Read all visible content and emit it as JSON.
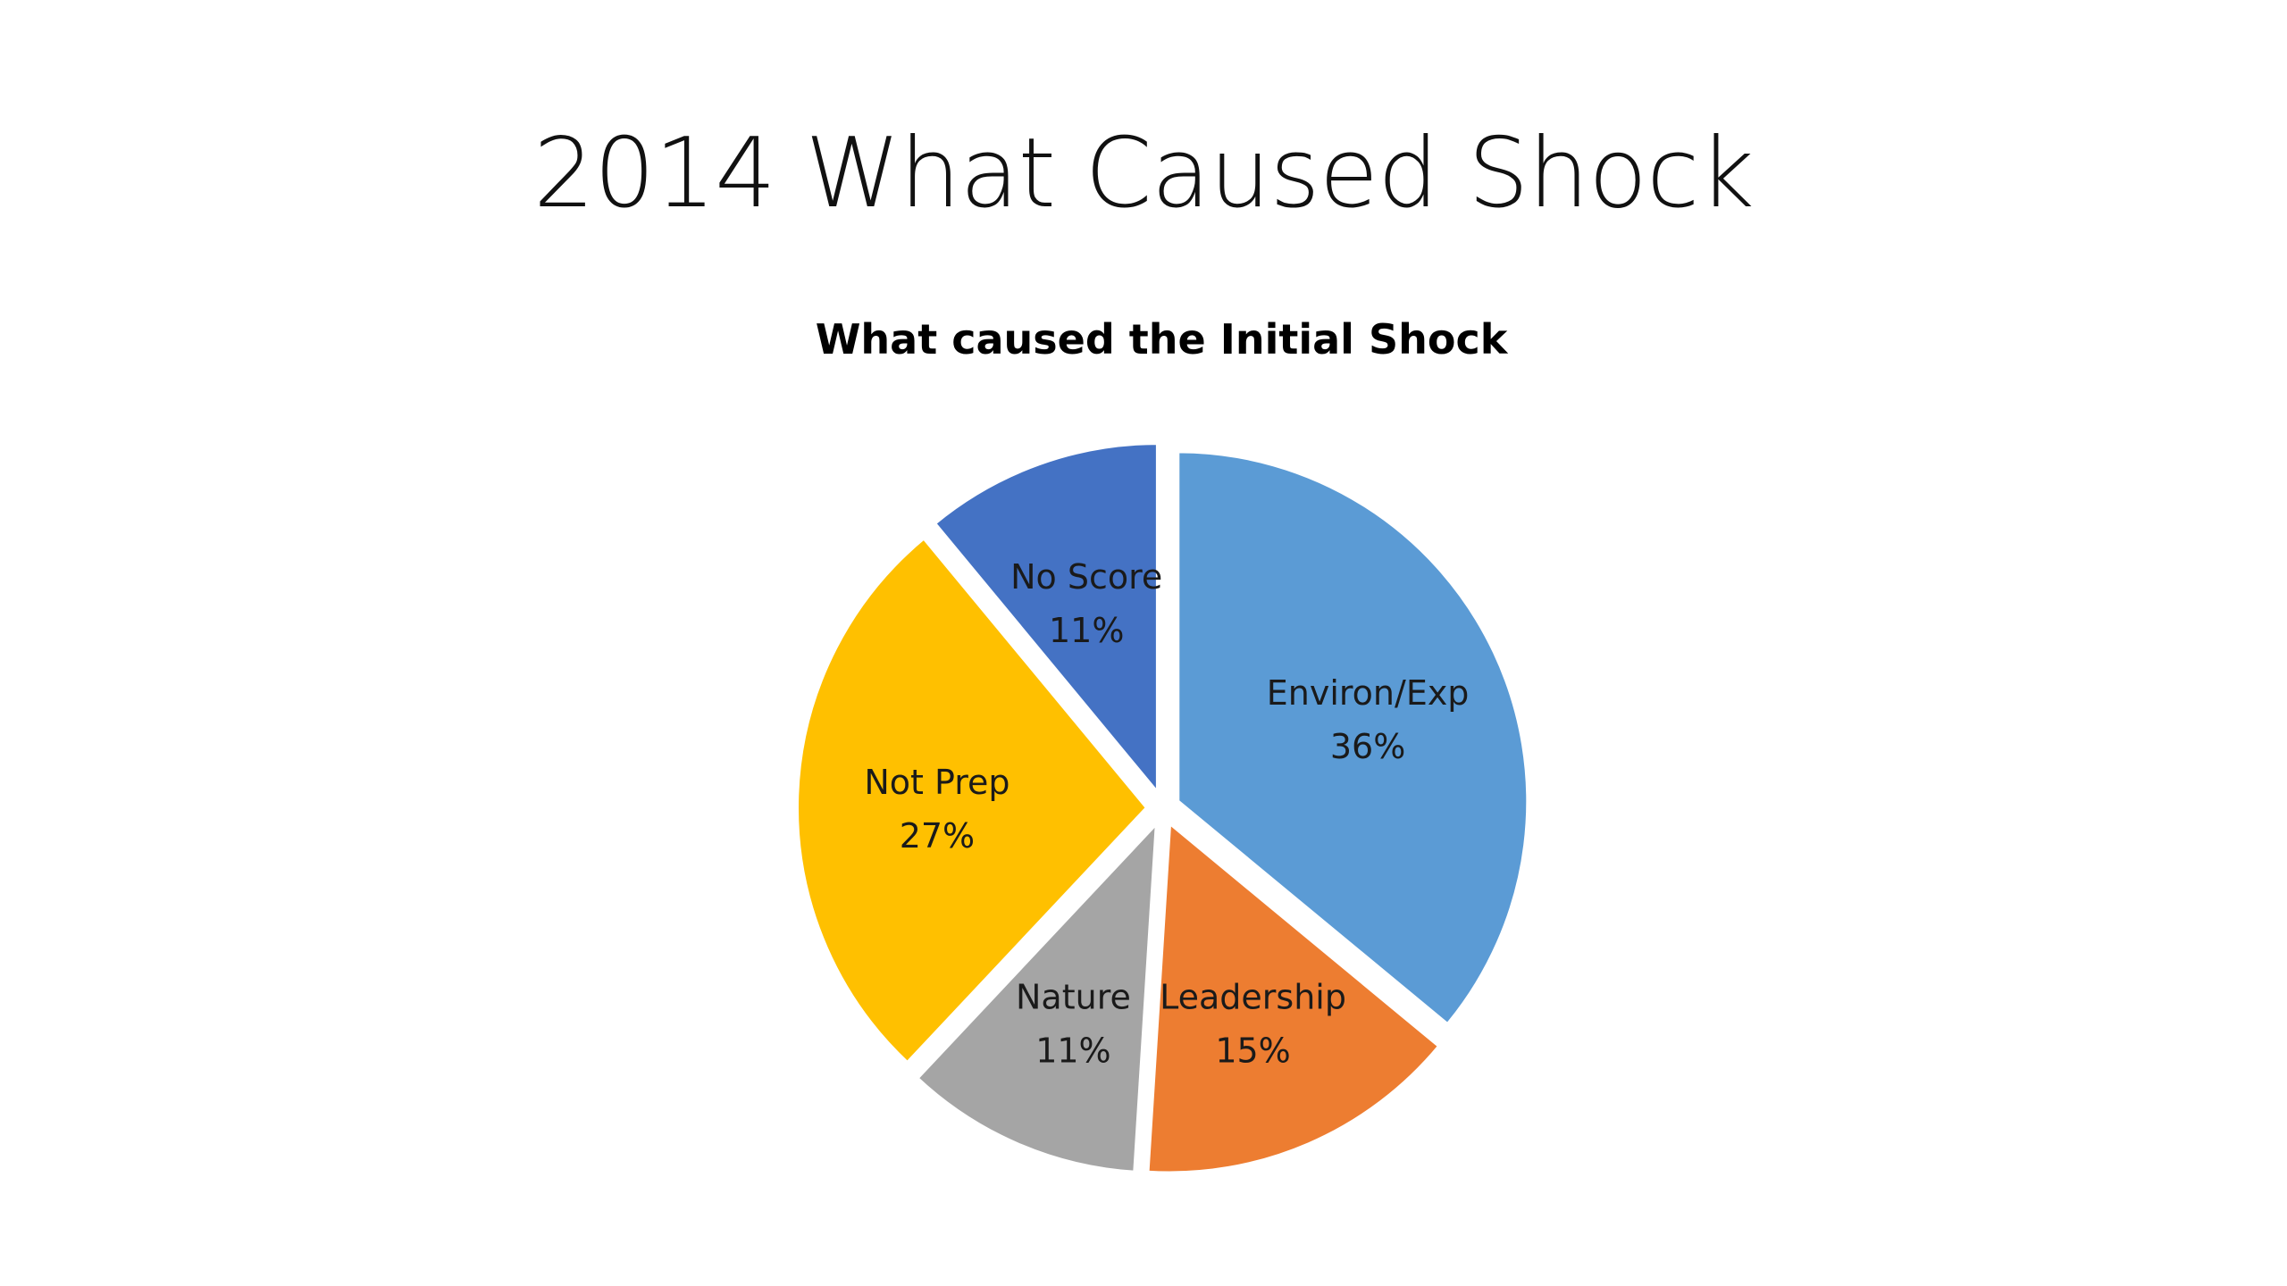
{
  "slide": {
    "title": "2014 What Caused Shock"
  },
  "chart_data": {
    "type": "pie",
    "title": "What caused the Initial Shock",
    "categories": [
      "Environ/Exp",
      "Leadership",
      "Nature",
      "Not Prep",
      "No Score"
    ],
    "values": [
      36,
      15,
      11,
      27,
      11
    ],
    "value_labels": [
      "36%",
      "15%",
      "11%",
      "27%",
      "11%"
    ],
    "colors": [
      "#5B9BD5",
      "#ED7D31",
      "#A5A5A5",
      "#FFC000",
      "#4472C4"
    ],
    "start_angle": "top, clockwise",
    "exploded": true,
    "legend": "none (labels inside slices)"
  }
}
